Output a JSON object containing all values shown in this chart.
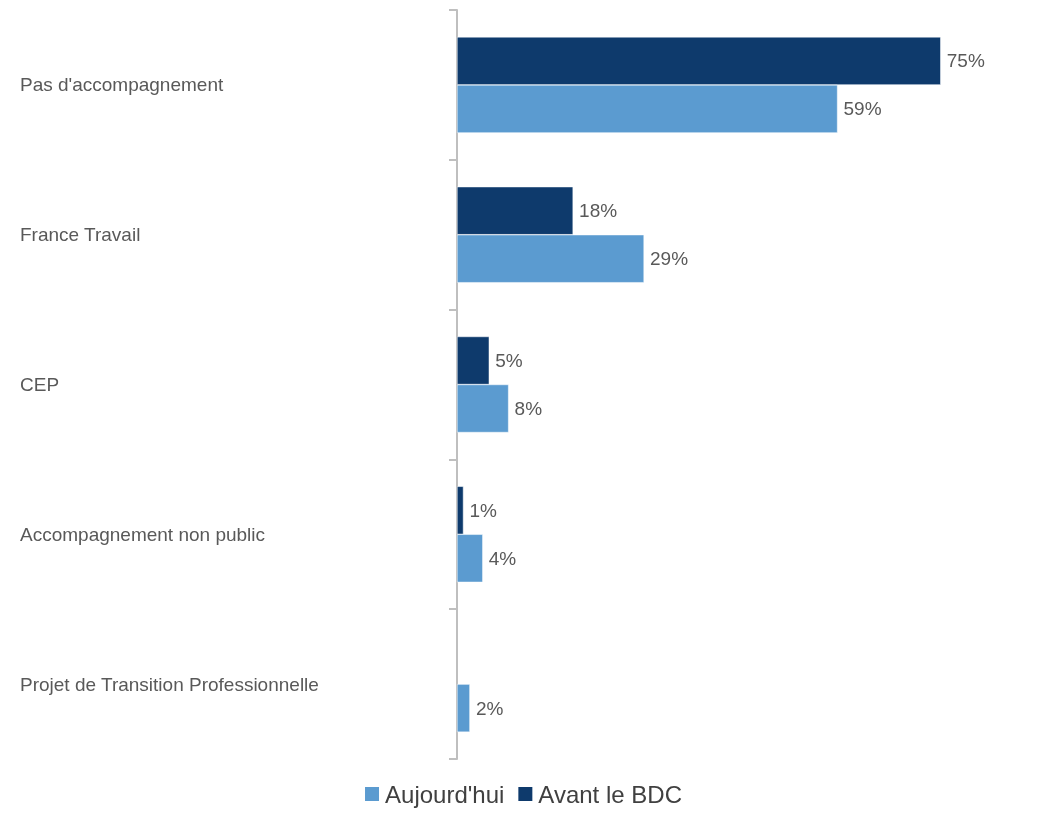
{
  "chart_data": {
    "type": "bar",
    "orientation": "horizontal",
    "categories": [
      "Pas d'accompagnement",
      "France Travail",
      "CEP",
      "Accompagnement non public",
      "Projet de Transition Professionnelle"
    ],
    "series": [
      {
        "name": "Avant le BDC",
        "color": "#0e3a6c",
        "values": [
          75,
          18,
          5,
          1,
          null
        ],
        "value_labels": [
          "75%",
          "18%",
          "5%",
          "1%",
          null
        ]
      },
      {
        "name": "Aujourd'hui",
        "color": "#5b9bd0",
        "values": [
          59,
          29,
          8,
          4,
          2
        ],
        "value_labels": [
          "59%",
          "29%",
          "8%",
          "4%",
          "2%"
        ]
      }
    ],
    "legend": "bottom"
  }
}
